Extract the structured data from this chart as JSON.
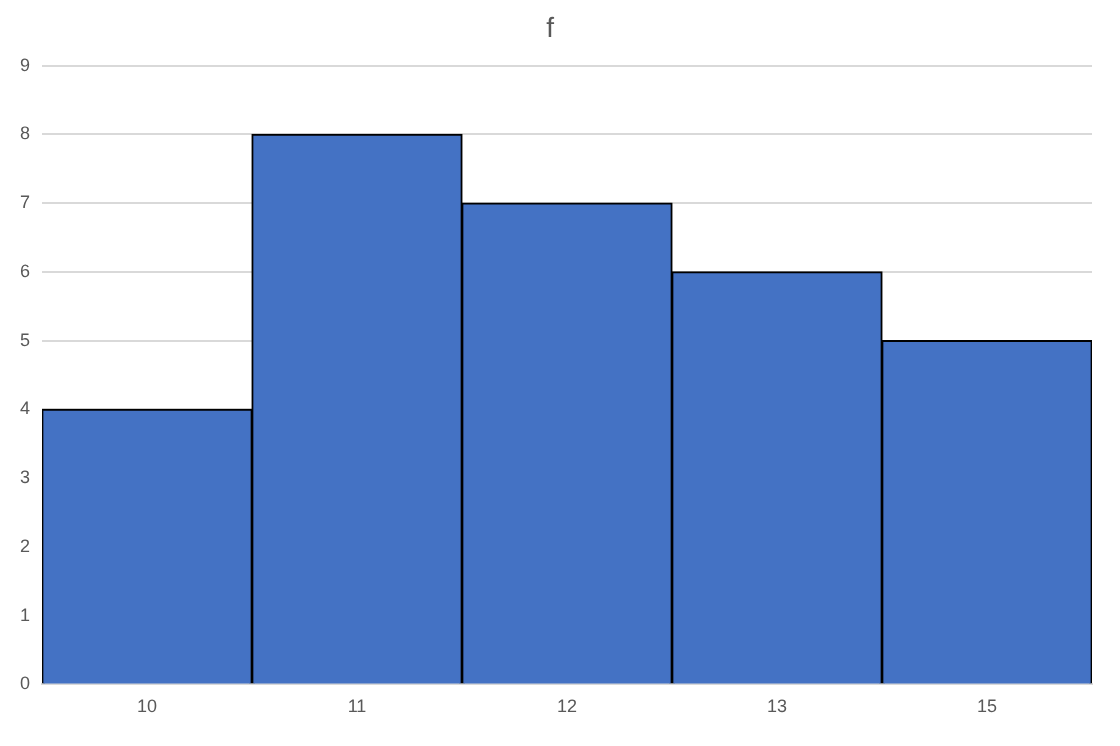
{
  "chart_data": {
    "type": "bar",
    "title": "f",
    "categories": [
      "10",
      "11",
      "12",
      "13",
      "15"
    ],
    "values": [
      4,
      8,
      7,
      6,
      5
    ],
    "color": "#4472c4",
    "ylim": [
      0,
      9
    ],
    "yticks": [
      0,
      1,
      2,
      3,
      4,
      5,
      6,
      7,
      8,
      9
    ],
    "grid": "y"
  }
}
